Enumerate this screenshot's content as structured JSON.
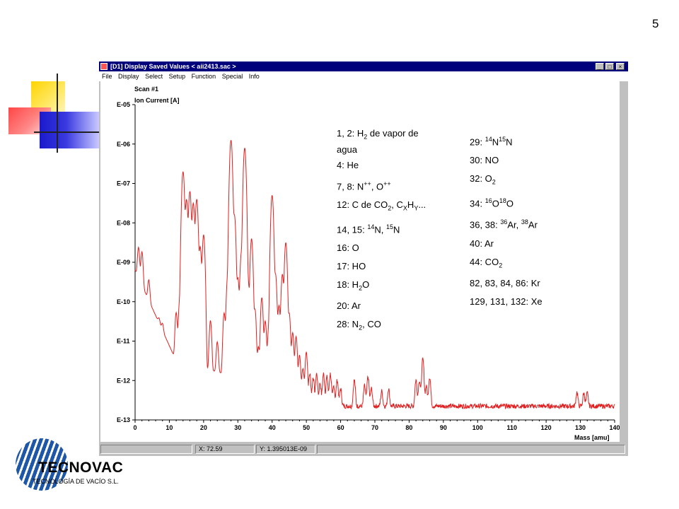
{
  "slide": {
    "page_number": "5"
  },
  "window": {
    "title": "[D1] Display Saved Values  < aii2413.sac >",
    "buttons": {
      "minimize": "_",
      "maximize": "□",
      "close": "×"
    },
    "menu": [
      "File",
      "Display",
      "Select",
      "Setup",
      "Function",
      "Special",
      "Info"
    ]
  },
  "chart": {
    "scan_label": "Scan #1",
    "ylabel": "Ion Current [A]",
    "xlabel": "Mass [amu]",
    "y_ticks": [
      "E-05",
      "E-06",
      "E-07",
      "E-08",
      "E-09",
      "E-10",
      "E-11",
      "E-12",
      "E-13"
    ],
    "x_ticks": [
      "0",
      "10",
      "20",
      "30",
      "40",
      "50",
      "60",
      "70",
      "80",
      "90",
      "100",
      "110",
      "120",
      "130",
      "140"
    ]
  },
  "chart_data": {
    "type": "line",
    "title": "",
    "xlabel": "Mass [amu]",
    "ylabel": "Ion Current [A]",
    "xlim": [
      0,
      140
    ],
    "ylim_log10": [
      -13,
      -5
    ],
    "y_scale": "log",
    "series_color": "#e02020",
    "peaks": [
      {
        "mass": 1,
        "log10_current": -8.7
      },
      {
        "mass": 2,
        "log10_current": -8.8
      },
      {
        "mass": 4,
        "log10_current": -9.6
      },
      {
        "mass": 7,
        "log10_current": -11.0
      },
      {
        "mass": 8,
        "log10_current": -11.0
      },
      {
        "mass": 12,
        "log10_current": -10.3
      },
      {
        "mass": 13,
        "log10_current": -10.0
      },
      {
        "mass": 14,
        "log10_current": -6.7
      },
      {
        "mass": 15,
        "log10_current": -7.4
      },
      {
        "mass": 16,
        "log10_current": -7.2
      },
      {
        "mass": 17,
        "log10_current": -7.5
      },
      {
        "mass": 18,
        "log10_current": -7.4
      },
      {
        "mass": 19,
        "log10_current": -8.6
      },
      {
        "mass": 20,
        "log10_current": -8.3
      },
      {
        "mass": 22,
        "log10_current": -10.5
      },
      {
        "mass": 24,
        "log10_current": -11.1
      },
      {
        "mass": 26,
        "log10_current": -10.3
      },
      {
        "mass": 27,
        "log10_current": -9.4
      },
      {
        "mass": 28,
        "log10_current": -5.9
      },
      {
        "mass": 29,
        "log10_current": -7.8
      },
      {
        "mass": 30,
        "log10_current": -9.4
      },
      {
        "mass": 31,
        "log10_current": -8.8
      },
      {
        "mass": 32,
        "log10_current": -6.1
      },
      {
        "mass": 33,
        "log10_current": -9.5
      },
      {
        "mass": 34,
        "log10_current": -8.4
      },
      {
        "mass": 35,
        "log10_current": -10.2
      },
      {
        "mass": 36,
        "log10_current": -11.2
      },
      {
        "mass": 37,
        "log10_current": -9.9
      },
      {
        "mass": 38,
        "log10_current": -10.5
      },
      {
        "mass": 39,
        "log10_current": -10.7
      },
      {
        "mass": 40,
        "log10_current": -7.3
      },
      {
        "mass": 41,
        "log10_current": -9.3
      },
      {
        "mass": 42,
        "log10_current": -10.1
      },
      {
        "mass": 43,
        "log10_current": -9.3
      },
      {
        "mass": 44,
        "log10_current": -8.5
      },
      {
        "mass": 45,
        "log10_current": -10.3
      },
      {
        "mass": 46,
        "log10_current": -10.8
      },
      {
        "mass": 47,
        "log10_current": -10.9
      },
      {
        "mass": 48,
        "log10_current": -11.4
      },
      {
        "mass": 49,
        "log10_current": -11.8
      },
      {
        "mass": 50,
        "log10_current": -11.3
      },
      {
        "mass": 51,
        "log10_current": -11.9
      },
      {
        "mass": 52,
        "log10_current": -12.0
      },
      {
        "mass": 53,
        "log10_current": -11.9
      },
      {
        "mass": 54,
        "log10_current": -12.2
      },
      {
        "mass": 55,
        "log10_current": -11.9
      },
      {
        "mass": 56,
        "log10_current": -12.0
      },
      {
        "mass": 57,
        "log10_current": -11.9
      },
      {
        "mass": 58,
        "log10_current": -12.3
      },
      {
        "mass": 59,
        "log10_current": -12.1
      },
      {
        "mass": 60,
        "log10_current": -12.4
      },
      {
        "mass": 64,
        "log10_current": -12.1
      },
      {
        "mass": 67,
        "log10_current": -12.3
      },
      {
        "mass": 68,
        "log10_current": -12.0
      },
      {
        "mass": 69,
        "log10_current": -12.4
      },
      {
        "mass": 72,
        "log10_current": -12.5
      },
      {
        "mass": 74,
        "log10_current": -12.4
      },
      {
        "mass": 82,
        "log10_current": -12.1
      },
      {
        "mass": 83,
        "log10_current": -12.1
      },
      {
        "mass": 84,
        "log10_current": -11.5
      },
      {
        "mass": 85,
        "log10_current": -12.3
      },
      {
        "mass": 86,
        "log10_current": -12.0
      },
      {
        "mass": 129,
        "log10_current": -12.55
      },
      {
        "mass": 131,
        "log10_current": -12.6
      },
      {
        "mass": 132,
        "log10_current": -12.6
      }
    ],
    "baseline_log10_current": -12.65
  },
  "legend_left": [
    "1, 2: H<sub>2</sub> de vapor de<br>agua",
    "4: He",
    "7, 8: N<sup>++</sup>, O<sup>++</sup>",
    "12: C de CO<sub>2</sub>, C<sub>X</sub>H<sub>Y</sub>...",
    "14, 15: <sup>14</sup>N, <sup>15</sup>N",
    "16: O",
    "17: HO",
    "18: H<sub>2</sub>O",
    "20: Ar",
    "28: N<sub>2</sub>, CO"
  ],
  "legend_right": [
    "29: <sup>14</sup>N<sup>15</sup>N",
    "30: NO",
    "32: O<sub>2</sub>",
    "34: <sup>16</sup>O<sup>18</sup>O",
    "36, 38: <sup>36</sup>Ar, <sup>38</sup>Ar",
    "40: Ar",
    "44: CO<sub>2</sub>",
    "82, 83, 84, 86: Kr",
    "129, 131, 132: Xe"
  ],
  "status": {
    "x_readout": "X: 72.59",
    "y_readout": "Y: 1.395013E-09"
  },
  "logo": {
    "name": "TECNOVAC",
    "subtitle": "TECNOLOGÍA DE VACÍO S.L."
  },
  "colors": {
    "titlebar": "#00007c",
    "trace": "#e02020"
  }
}
